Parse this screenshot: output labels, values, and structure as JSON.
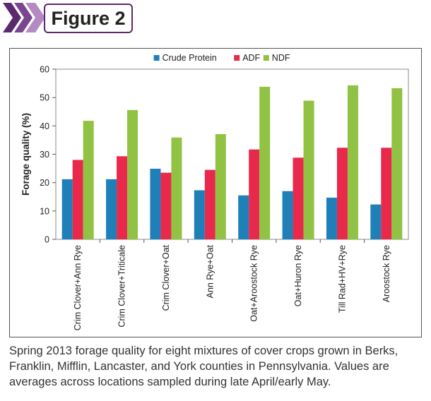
{
  "header": {
    "title": "Figure 2",
    "chevron_colors": [
      "#5b2a6e",
      "#7a4690",
      "#b48ac4"
    ]
  },
  "chart_data": {
    "type": "bar",
    "categories": [
      "Crim Clover+Ann Rye",
      "Crim Clover+Triticale",
      "Crim Clover+Oat",
      "Ann Rye+Oat",
      "Oat+Aroostock Rye",
      "Oat+Huron Rye",
      "Till Rad+HV+Rye",
      "Aroostock Rye"
    ],
    "series": [
      {
        "name": "Crude Protein",
        "color": "#1f7fb8",
        "values": [
          21.2,
          21.2,
          24.9,
          17.3,
          15.5,
          17.0,
          14.7,
          12.3
        ]
      },
      {
        "name": "ADF",
        "color": "#e8294c",
        "values": [
          28.0,
          29.3,
          23.5,
          24.5,
          31.7,
          28.8,
          32.3,
          32.3
        ]
      },
      {
        "name": "NDF",
        "color": "#92c244",
        "values": [
          41.8,
          45.6,
          35.9,
          37.1,
          53.8,
          48.9,
          54.3,
          53.3
        ]
      }
    ],
    "ylabel": "Forage quality (%)",
    "xlabel": "",
    "ylim": [
      0,
      60
    ],
    "yticks": [
      0,
      10,
      20,
      30,
      40,
      50,
      60
    ],
    "grid": false,
    "legend_position": "top"
  },
  "caption": "Spring 2013 forage quality for eight mixtures of cover crops grown in Berks, Franklin, Mifflin, Lancaster, and York counties in Pennsylvania. Values are averages across locations sampled during late April/early May."
}
